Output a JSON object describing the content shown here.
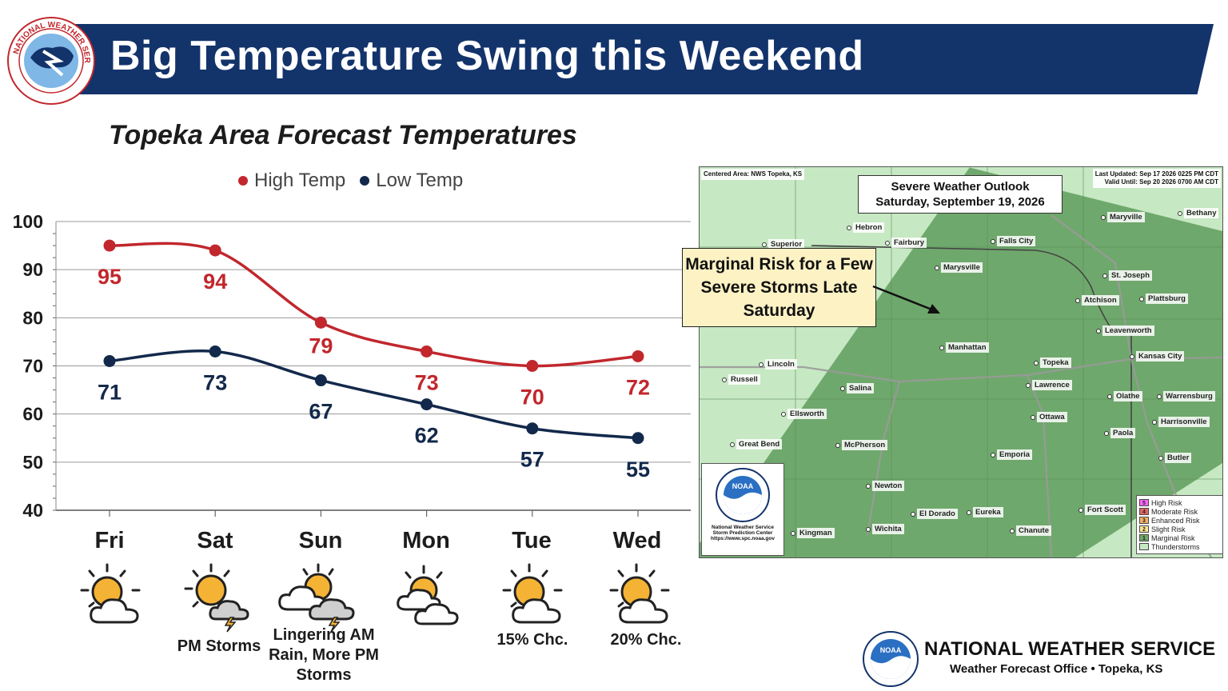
{
  "header": {
    "title": "Big Temperature Swing this Weekend"
  },
  "nws_seal_text": "NATIONAL WEATHER SERVICE",
  "chart_data": {
    "type": "line",
    "title": "Topeka Area Forecast Temperatures",
    "categories": [
      "Fri",
      "Sat",
      "Sun",
      "Mon",
      "Tue",
      "Wed"
    ],
    "series": [
      {
        "name": "High Temp",
        "color": "#c1272d",
        "values": [
          95,
          94,
          79,
          73,
          70,
          72
        ]
      },
      {
        "name": "Low Temp",
        "color": "#13294b",
        "values": [
          71,
          73,
          67,
          62,
          57,
          55
        ]
      }
    ],
    "yticks": [
      40,
      50,
      60,
      70,
      80,
      90,
      100
    ],
    "ylim": [
      40,
      100
    ],
    "grid": true,
    "legend_position": "top",
    "data_labels": true,
    "smoothed": true
  },
  "days": [
    {
      "name": "Fri",
      "icon": "partly-sunny-icon",
      "note": ""
    },
    {
      "name": "Sat",
      "icon": "partly-sunny-storm-icon",
      "note": "PM Storms"
    },
    {
      "name": "Sun",
      "icon": "cloudy-storm-icon",
      "note": "Lingering AM Rain, More PM Storms"
    },
    {
      "name": "Mon",
      "icon": "mostly-cloudy-icon",
      "note": ""
    },
    {
      "name": "Tue",
      "icon": "partly-sunny-icon",
      "note": "15% Chc."
    },
    {
      "name": "Wed",
      "icon": "partly-sunny-icon",
      "note": "20% Chc."
    }
  ],
  "map": {
    "title_line1": "Severe Weather Outlook",
    "title_line2": "Saturday, September 19, 2026",
    "centered_area": "Centered Area: NWS Topeka, KS",
    "last_updated": "Last Updated: Sep 17 2026 0225 PM CDT",
    "valid_until": "Valid Until: Sep 20 2026 0700 AM CDT",
    "cities": [
      "Hebron",
      "Fairbury",
      "Superior",
      "Falls City",
      "Maryville",
      "Bethany",
      "Marysville",
      "St. Joseph",
      "Atchison",
      "Plattsburg",
      "Leavenworth",
      "Manhattan",
      "Kansas City",
      "Lincoln",
      "Topeka",
      "Russell",
      "Salina",
      "Lawrence",
      "Olathe",
      "Warrensburg",
      "Ellsworth",
      "Ottawa",
      "Harrisonville",
      "Paola",
      "Great Bend",
      "McPherson",
      "Emporia",
      "Butler",
      "Newton",
      "Fort Scott",
      "El Dorado",
      "Eureka",
      "Kingman",
      "Wichita",
      "Chanute"
    ],
    "legend": [
      {
        "num": "5",
        "label": "High Risk",
        "color": "#ff66ff"
      },
      {
        "num": "4",
        "label": "Moderate Risk",
        "color": "#e06666"
      },
      {
        "num": "3",
        "label": "Enhanced Risk",
        "color": "#f6b26b"
      },
      {
        "num": "2",
        "label": "Slight Risk",
        "color": "#ffe599"
      },
      {
        "num": "1",
        "label": "Marginal Risk",
        "color": "#6fa86c"
      },
      {
        "num": "",
        "label": "Thunderstorms",
        "color": "#c6e8c3"
      }
    ],
    "noaa_text_1": "National Weather Service",
    "noaa_text_2": "Storm Prediction Center",
    "noaa_text_3": "https://www.spc.noaa.gov"
  },
  "callout": {
    "text": "Marginal Risk for a Few Severe Storms Late Saturday"
  },
  "footer": {
    "title": "NATIONAL WEATHER SERVICE",
    "subtitle": "Weather Forecast Office • Topeka, KS"
  }
}
